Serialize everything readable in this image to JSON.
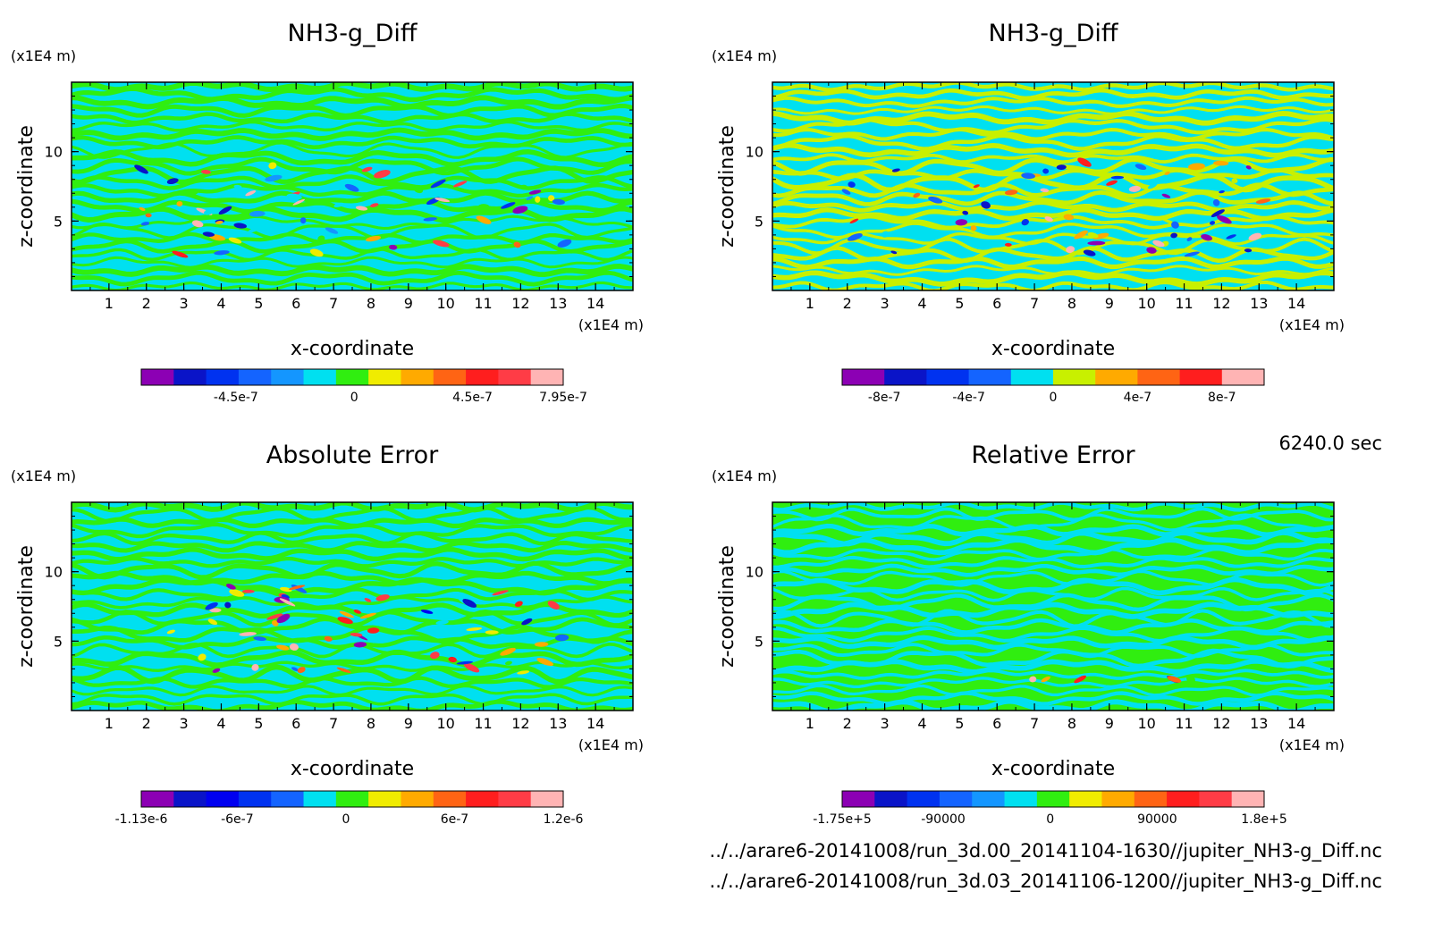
{
  "figure": {
    "timestamp": "6240.0 sec",
    "files": [
      "../../arare6-20141008/run_3d.00_20141104-1630//jupiter_NH3-g_Diff.nc",
      "../../arare6-20141008/run_3d.03_20141106-1200//jupiter_NH3-g_Diff.nc"
    ]
  },
  "chart_data": [
    {
      "type": "heatmap",
      "title": "NH3-g_Diff",
      "xlabel": "x-coordinate",
      "ylabel": "z-coordinate",
      "x_unit": "(x1E4 m)",
      "y_unit": "(x1E4 m)",
      "xlim": [
        0,
        15
      ],
      "ylim": [
        0,
        15
      ],
      "x_ticks": [
        "1",
        "2",
        "3",
        "4",
        "5",
        "6",
        "7",
        "8",
        "9",
        "10",
        "11",
        "12",
        "13",
        "14"
      ],
      "y_ticks": [
        "5",
        "10"
      ],
      "dominant_colors": [
        "#00e0f0",
        "#30ee10"
      ],
      "colorbar": {
        "colors": [
          "#8c00b4",
          "#0a14c8",
          "#0032f0",
          "#1464ff",
          "#1496ff",
          "#00e0f0",
          "#30ee10",
          "#f0ec00",
          "#ffaa00",
          "#ff6414",
          "#ff1e1e",
          "#ff3c46",
          "#ffb4b4"
        ],
        "labels": [
          "-4.5e-7",
          "0",
          "4.5e-7",
          "7.95e-7"
        ],
        "label_values": [
          -4.5e-07,
          0,
          4.5e-07,
          7.95e-07
        ],
        "range": [
          -8.1e-07,
          7.95e-07
        ]
      }
    },
    {
      "type": "heatmap",
      "title": "NH3-g_Diff",
      "xlabel": "x-coordinate",
      "ylabel": "z-coordinate",
      "x_unit": "(x1E4 m)",
      "y_unit": "(x1E4 m)",
      "xlim": [
        0,
        15
      ],
      "ylim": [
        0,
        15
      ],
      "x_ticks": [
        "1",
        "2",
        "3",
        "4",
        "5",
        "6",
        "7",
        "8",
        "9",
        "10",
        "11",
        "12",
        "13",
        "14"
      ],
      "y_ticks": [
        "5",
        "10"
      ],
      "dominant_colors": [
        "#00e0f0",
        "#c8f000"
      ],
      "colorbar": {
        "colors": [
          "#8c00b4",
          "#0a14c8",
          "#0032f0",
          "#1464ff",
          "#00e0f0",
          "#c8f000",
          "#ffaa00",
          "#ff6414",
          "#ff1e1e",
          "#ffb4b4"
        ],
        "labels": [
          "-8e-7",
          "-4e-7",
          "0",
          "4e-7",
          "8e-7"
        ],
        "label_values": [
          -8e-07,
          -4e-07,
          0,
          4e-07,
          8e-07
        ],
        "range": [
          -1e-06,
          1e-06
        ]
      }
    },
    {
      "type": "heatmap",
      "title": "Absolute Error",
      "xlabel": "x-coordinate",
      "ylabel": "z-coordinate",
      "x_unit": "(x1E4 m)",
      "y_unit": "(x1E4 m)",
      "xlim": [
        0,
        15
      ],
      "ylim": [
        0,
        15
      ],
      "x_ticks": [
        "1",
        "2",
        "3",
        "4",
        "5",
        "6",
        "7",
        "8",
        "9",
        "10",
        "11",
        "12",
        "13",
        "14"
      ],
      "y_ticks": [
        "5",
        "10"
      ],
      "dominant_colors": [
        "#00e0f0",
        "#30ee10"
      ],
      "colorbar": {
        "colors": [
          "#8c00b4",
          "#0a14c8",
          "#0000f0",
          "#0032f0",
          "#1464ff",
          "#00e0f0",
          "#30ee10",
          "#f0ec00",
          "#ffaa00",
          "#ff6414",
          "#ff1e1e",
          "#ff3c46",
          "#ffb4b4"
        ],
        "labels": [
          "-1.13e-6",
          "-6e-7",
          "0",
          "6e-7",
          "1.2e-6"
        ],
        "label_values": [
          -1.13e-06,
          -6e-07,
          0,
          6e-07,
          1.2e-06
        ],
        "range": [
          -1.13e-06,
          1.2e-06
        ]
      }
    },
    {
      "type": "heatmap",
      "title": "Relative Error",
      "xlabel": "x-coordinate",
      "ylabel": "z-coordinate",
      "x_unit": "(x1E4 m)",
      "y_unit": "(x1E4 m)",
      "xlim": [
        0,
        15
      ],
      "ylim": [
        0,
        15
      ],
      "x_ticks": [
        "1",
        "2",
        "3",
        "4",
        "5",
        "6",
        "7",
        "8",
        "9",
        "10",
        "11",
        "12",
        "13",
        "14"
      ],
      "y_ticks": [
        "5",
        "10"
      ],
      "dominant_colors": [
        "#30ee10",
        "#00e0f0"
      ],
      "colorbar": {
        "colors": [
          "#8c00b4",
          "#0a14c8",
          "#0032f0",
          "#1464ff",
          "#1496ff",
          "#00e0f0",
          "#30ee10",
          "#f0ec00",
          "#ffaa00",
          "#ff6414",
          "#ff1e1e",
          "#ff3c46",
          "#ffb4b4"
        ],
        "labels": [
          "-1.75e+5",
          "-90000",
          "0",
          "90000",
          "1.8e+5"
        ],
        "label_values": [
          -175000,
          -90000,
          0,
          90000,
          180000
        ],
        "range": [
          -175000,
          180000
        ]
      }
    }
  ]
}
